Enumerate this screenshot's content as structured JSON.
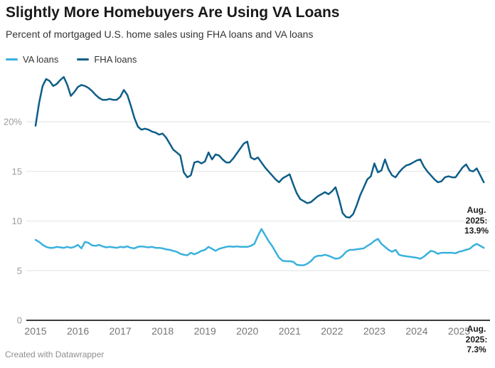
{
  "header": {
    "title": "Slightly More Homebuyers Are Using VA Loans",
    "subtitle": "Percent of mortgaged U.S. home sales using FHA loans and VA loans"
  },
  "legend": {
    "items": [
      {
        "label": "VA loans",
        "color": "#39b1dc"
      },
      {
        "label": "FHA loans",
        "color": "#0e5e88"
      }
    ]
  },
  "chart_data": {
    "type": "line",
    "title": "Slightly More Homebuyers Are Using VA Loans",
    "subtitle": "Percent of mortgaged U.S. home sales using FHA loans and VA loans",
    "x_unit": "month",
    "x_start": "2015-01",
    "x_end": "2025-08",
    "x_tick_labels": [
      "2015",
      "2016",
      "2017",
      "2018",
      "2019",
      "2020",
      "2021",
      "2022",
      "2023",
      "2024",
      "2025"
    ],
    "y_ticks": [
      {
        "value": 0,
        "label": "0"
      },
      {
        "value": 5,
        "label": "5"
      },
      {
        "value": 10,
        "label": "10"
      },
      {
        "value": 15,
        "label": "15"
      },
      {
        "value": 20,
        "label": "20%"
      }
    ],
    "ylim": [
      0,
      25
    ],
    "grid": true,
    "legend_position": "top-left",
    "series": [
      {
        "name": "VA loans",
        "color": "#39b1dc",
        "values": [
          8.1,
          7.9,
          7.6,
          7.4,
          7.3,
          7.3,
          7.4,
          7.35,
          7.3,
          7.4,
          7.3,
          7.4,
          7.6,
          7.25,
          7.9,
          7.8,
          7.55,
          7.5,
          7.6,
          7.45,
          7.35,
          7.4,
          7.35,
          7.3,
          7.4,
          7.35,
          7.45,
          7.3,
          7.25,
          7.4,
          7.45,
          7.4,
          7.35,
          7.4,
          7.3,
          7.3,
          7.25,
          7.15,
          7.1,
          7.0,
          6.9,
          6.7,
          6.6,
          6.55,
          6.8,
          6.65,
          6.8,
          7.0,
          7.1,
          7.4,
          7.2,
          7.0,
          7.2,
          7.3,
          7.4,
          7.45,
          7.4,
          7.45,
          7.4,
          7.4,
          7.4,
          7.5,
          7.7,
          8.5,
          9.2,
          8.6,
          8.0,
          7.5,
          6.9,
          6.3,
          6.0,
          5.95,
          5.95,
          5.9,
          5.6,
          5.55,
          5.55,
          5.7,
          5.95,
          6.35,
          6.5,
          6.5,
          6.6,
          6.5,
          6.35,
          6.2,
          6.25,
          6.5,
          6.9,
          7.1,
          7.1,
          7.15,
          7.2,
          7.25,
          7.5,
          7.7,
          8.0,
          8.2,
          7.7,
          7.4,
          7.1,
          6.9,
          7.1,
          6.6,
          6.5,
          6.45,
          6.4,
          6.35,
          6.3,
          6.2,
          6.4,
          6.7,
          7.0,
          6.9,
          6.7,
          6.8,
          6.8,
          6.8,
          6.8,
          6.75,
          6.9,
          7.0,
          7.1,
          7.2,
          7.5,
          7.7,
          7.5,
          7.3
        ],
        "end_label": "Aug. 2025: 7.3%"
      },
      {
        "name": "FHA loans",
        "color": "#0e5e88",
        "values": [
          19.6,
          21.9,
          23.6,
          24.3,
          24.1,
          23.6,
          23.8,
          24.2,
          24.5,
          23.7,
          22.6,
          23.0,
          23.5,
          23.7,
          23.6,
          23.4,
          23.1,
          22.7,
          22.4,
          22.2,
          22.2,
          22.3,
          22.2,
          22.2,
          22.5,
          23.2,
          22.7,
          21.6,
          20.4,
          19.5,
          19.2,
          19.3,
          19.2,
          19.0,
          18.9,
          18.7,
          18.8,
          18.4,
          17.8,
          17.2,
          16.9,
          16.6,
          14.9,
          14.4,
          14.6,
          15.9,
          16.0,
          15.8,
          16.0,
          16.9,
          16.2,
          16.7,
          16.6,
          16.2,
          15.9,
          15.9,
          16.3,
          16.8,
          17.3,
          17.8,
          18.0,
          16.4,
          16.2,
          16.4,
          15.9,
          15.4,
          15.0,
          14.6,
          14.2,
          13.9,
          14.3,
          14.5,
          14.7,
          13.7,
          12.8,
          12.2,
          12.0,
          11.8,
          11.9,
          12.2,
          12.5,
          12.7,
          12.9,
          12.7,
          13.0,
          13.4,
          12.2,
          10.8,
          10.4,
          10.35,
          10.7,
          11.6,
          12.6,
          13.4,
          14.2,
          14.5,
          15.8,
          14.9,
          15.1,
          16.2,
          15.2,
          14.6,
          14.4,
          14.9,
          15.3,
          15.6,
          15.7,
          15.9,
          16.1,
          16.2,
          15.5,
          15.0,
          14.6,
          14.2,
          13.9,
          14.0,
          14.4,
          14.5,
          14.4,
          14.4,
          14.9,
          15.4,
          15.7,
          15.1,
          15.0,
          15.3,
          14.6,
          13.9
        ],
        "end_label": "Aug. 2025: 13.9%"
      }
    ]
  },
  "annotations": [
    {
      "series": "FHA loans",
      "text": "Aug.\n2025:\n13.9%"
    },
    {
      "series": "VA loans",
      "text": "Aug.\n2025:\n7.3%"
    }
  ],
  "footer": {
    "text": "Created with Datawrapper"
  }
}
